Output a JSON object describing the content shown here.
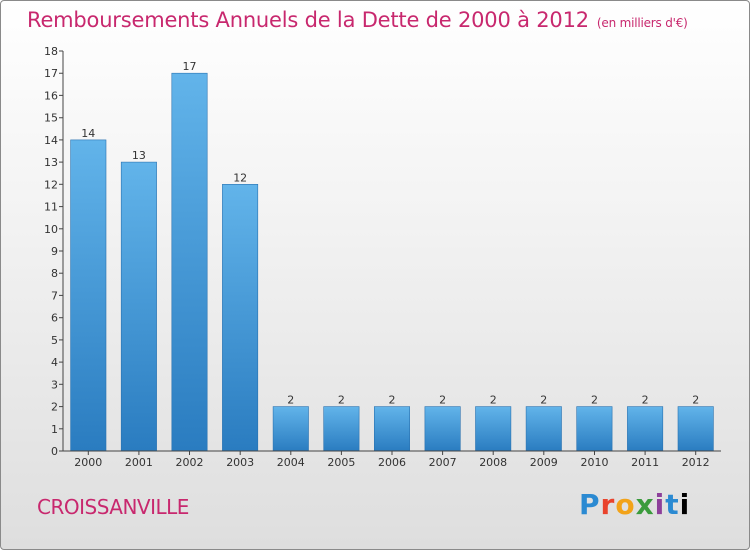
{
  "header": {
    "title": "Remboursements Annuels de la Dette de 2000 à 2012",
    "unit": "(en milliers d'€)"
  },
  "footer": {
    "commune": "CROISSANVILLE",
    "brand_letters": [
      "P",
      "r",
      "o",
      "x",
      "i",
      "t",
      "i"
    ]
  },
  "colors": {
    "title": "#c8286e",
    "bar_top": "#62b4ea",
    "bar_bottom": "#2a7cc0",
    "axis": "#444444"
  },
  "chart_data": {
    "type": "bar",
    "title": "Remboursements Annuels de la Dette de 2000 à 2012",
    "subtitle": "(en milliers d'€)",
    "categories": [
      "2000",
      "2001",
      "2002",
      "2003",
      "2004",
      "2005",
      "2006",
      "2007",
      "2008",
      "2009",
      "2010",
      "2011",
      "2012"
    ],
    "values": [
      14,
      13,
      17,
      12,
      2,
      2,
      2,
      2,
      2,
      2,
      2,
      2,
      2
    ],
    "data_labels": [
      "14",
      "13",
      "17",
      "12",
      "2",
      "2",
      "2",
      "2",
      "2",
      "2",
      "2",
      "2",
      "2"
    ],
    "ylim": [
      0,
      18
    ],
    "yticks": [
      "0",
      "1",
      "2",
      "3",
      "4",
      "5",
      "6",
      "7",
      "8",
      "9",
      "10",
      "11",
      "12",
      "13",
      "14",
      "15",
      "16",
      "17",
      "18"
    ],
    "grid": false,
    "legend": "none"
  }
}
